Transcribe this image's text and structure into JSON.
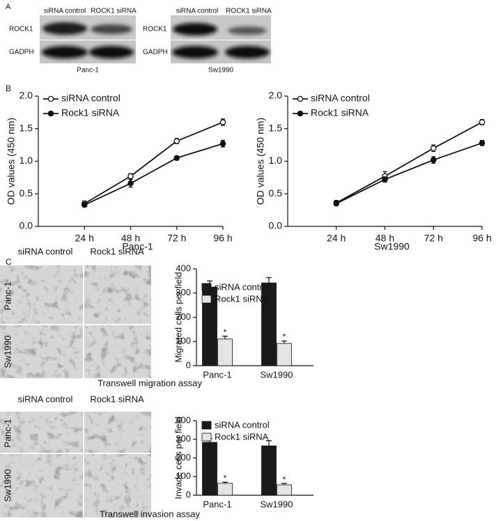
{
  "panel_labels": [
    "A",
    "B",
    "C"
  ],
  "blots": [
    {
      "lanes": [
        "siRNA control",
        "ROCK1 siRNA"
      ],
      "rows": [
        "ROCK1",
        "GADPH"
      ],
      "cell_line": "Panc-1"
    },
    {
      "lanes": [
        "siRNA control",
        "ROCK1 siRNA"
      ],
      "rows": [
        "ROCK1",
        "GADPH"
      ],
      "cell_line": "Sw1990"
    }
  ],
  "micrographs": [
    {
      "columns": [
        "siRNA control",
        "Rock1 siRNA"
      ],
      "rows": [
        "Panc-1",
        "Sw1990"
      ],
      "caption": "Transwell migration assay"
    },
    {
      "columns": [
        "siRNA control",
        "Rock1 siRNA"
      ],
      "rows": [
        "Panc-1",
        "Sw1990"
      ],
      "caption": "Transwell invasion assay"
    }
  ],
  "chart_data": [
    {
      "type": "line",
      "xlabel": "Panc-1",
      "ylabel": "OD values (450 nm)",
      "categories": [
        "24 h",
        "48 h",
        "72 h",
        "96 h"
      ],
      "series": [
        {
          "name": "siRNA control",
          "color": "#111111",
          "marker": "open",
          "values": [
            0.35,
            0.77,
            1.31,
            1.6
          ],
          "errors": [
            0.04,
            0.04,
            0.04,
            0.05
          ]
        },
        {
          "name": "Rock1 siRNA",
          "color": "#111111",
          "marker": "filled",
          "values": [
            0.33,
            0.66,
            1.05,
            1.27
          ],
          "errors": [
            0.03,
            0.06,
            0.03,
            0.05
          ]
        }
      ],
      "ylim": [
        0,
        2
      ],
      "yticks": [
        {
          "value": 0,
          "label": "0.0"
        },
        {
          "value": 0.5,
          "label": "0.5"
        },
        {
          "value": 1,
          "label": "1.0"
        },
        {
          "value": 1.5,
          "label": "1.5"
        },
        {
          "value": 2,
          "label": "2.0"
        }
      ],
      "legend": "upper left"
    },
    {
      "type": "line",
      "xlabel": "Sw1990",
      "ylabel": "OD values (450 nm)",
      "categories": [
        "24 h",
        "48 h",
        "72 h",
        "96 h"
      ],
      "series": [
        {
          "name": "siRNA control",
          "color": "#111111",
          "marker": "open",
          "values": [
            0.36,
            0.77,
            1.2,
            1.6
          ],
          "errors": [
            0.04,
            0.07,
            0.05,
            0.04
          ]
        },
        {
          "name": "Rock1 siRNA",
          "color": "#111111",
          "marker": "filled",
          "values": [
            0.35,
            0.72,
            1.02,
            1.28
          ],
          "errors": [
            0.03,
            0.04,
            0.05,
            0.04
          ]
        }
      ],
      "ylim": [
        0,
        2
      ],
      "yticks": [
        {
          "value": 0,
          "label": "0.0"
        },
        {
          "value": 0.5,
          "label": "0.5"
        },
        {
          "value": 1,
          "label": "1.0"
        },
        {
          "value": 1.5,
          "label": "1.5"
        },
        {
          "value": 2,
          "label": "2.0"
        }
      ],
      "legend": "upper left"
    },
    {
      "type": "bar",
      "ylabel": "Migrated cells per field",
      "categories": [
        "Panc-1",
        "Sw1990"
      ],
      "series": [
        {
          "name": "siRNA control",
          "color": "#1a1a1a",
          "values": [
            325,
            342
          ],
          "errors": [
            25,
            22
          ]
        },
        {
          "name": "Rock1 siRNA",
          "color": "#e4e4e4",
          "values": [
            110,
            92
          ],
          "errors": [
            12,
            10
          ],
          "markers": [
            "*",
            "*"
          ]
        }
      ],
      "ylim": [
        0,
        400
      ],
      "yticks": [
        0,
        100,
        200,
        300,
        400
      ],
      "legend": "upper left"
    },
    {
      "type": "bar",
      "ylabel": "Invade cells per field",
      "categories": [
        "Panc-1",
        "Sw1990"
      ],
      "series": [
        {
          "name": "siRNA control",
          "color": "#1a1a1a",
          "values": [
            284,
            265
          ],
          "errors": [
            20,
            28
          ]
        },
        {
          "name": "Rock1 siRNA",
          "color": "#e4e4e4",
          "values": [
            64,
            56
          ],
          "errors": [
            6,
            7
          ],
          "markers": [
            "*",
            "*"
          ]
        }
      ],
      "ylim": [
        0,
        400
      ],
      "yticks": [
        0,
        100,
        200,
        300,
        400
      ],
      "legend": "upper left"
    }
  ]
}
